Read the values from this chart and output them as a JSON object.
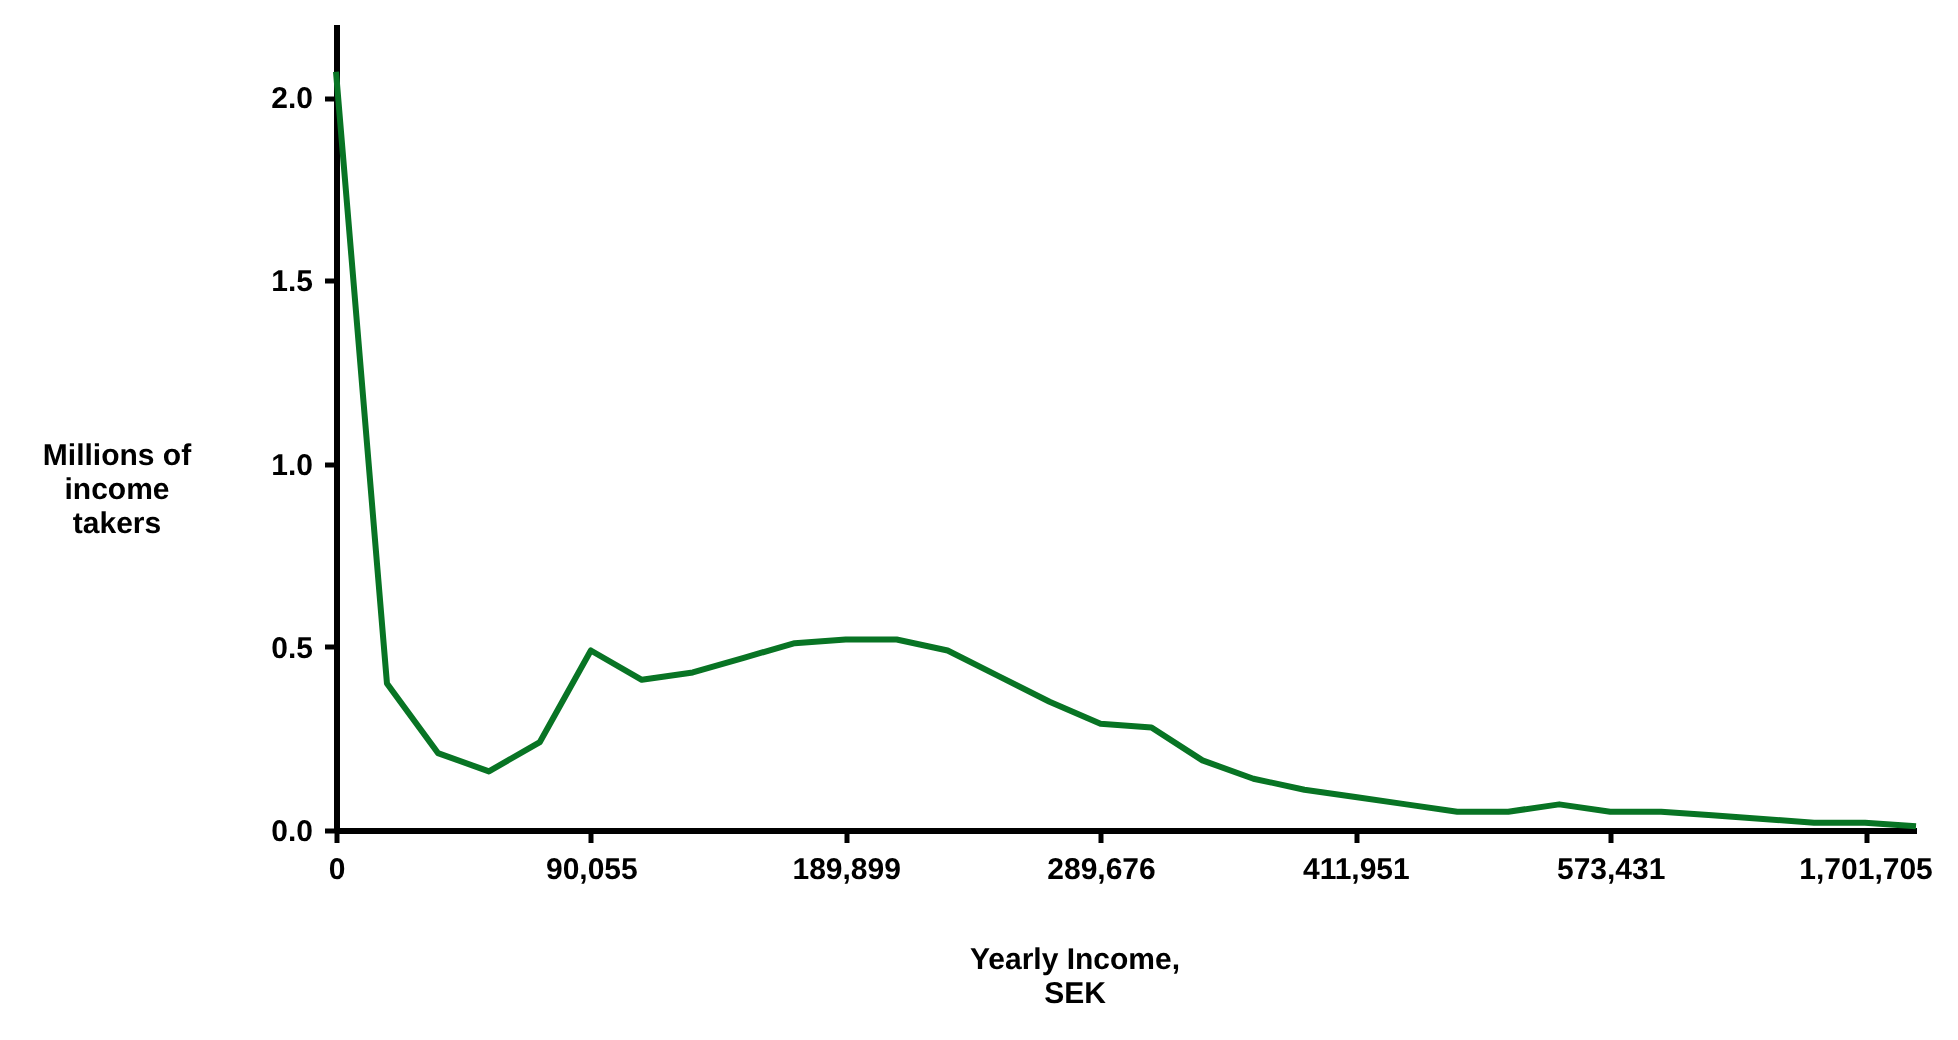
{
  "chart_data": {
    "type": "line",
    "xlabel": "Yearly Income, SEK",
    "ylabel": "Millions of income takers",
    "categories": [
      "0",
      null,
      null,
      null,
      null,
      "90,055",
      null,
      null,
      null,
      null,
      "189,899",
      null,
      null,
      null,
      null,
      "289,676",
      null,
      null,
      null,
      null,
      "411,951",
      null,
      null,
      null,
      null,
      "573,431",
      null,
      null,
      null,
      null,
      "1,701,705",
      null
    ],
    "series": [
      {
        "color": "#087424",
        "values": [
          2.07,
          0.4,
          0.21,
          0.16,
          0.24,
          0.49,
          0.41,
          0.43,
          0.47,
          0.51,
          0.52,
          0.52,
          0.49,
          0.42,
          0.35,
          0.29,
          0.28,
          0.19,
          0.14,
          0.11,
          0.09,
          0.07,
          0.05,
          0.05,
          0.07,
          0.05,
          0.05,
          0.04,
          0.03,
          0.02,
          0.02,
          0.01
        ]
      }
    ],
    "ylim": [
      0,
      2.2
    ],
    "yticks": [
      {
        "value": 0,
        "label": "0.0"
      },
      {
        "value": 0.5,
        "label": "0.5"
      },
      {
        "value": 1,
        "label": "1.0"
      },
      {
        "value": 1.5,
        "label": "1.5"
      },
      {
        "value": 2,
        "label": "2.0"
      }
    ],
    "grid": false,
    "legend": false,
    "marker": "none",
    "line_style": "solid"
  }
}
